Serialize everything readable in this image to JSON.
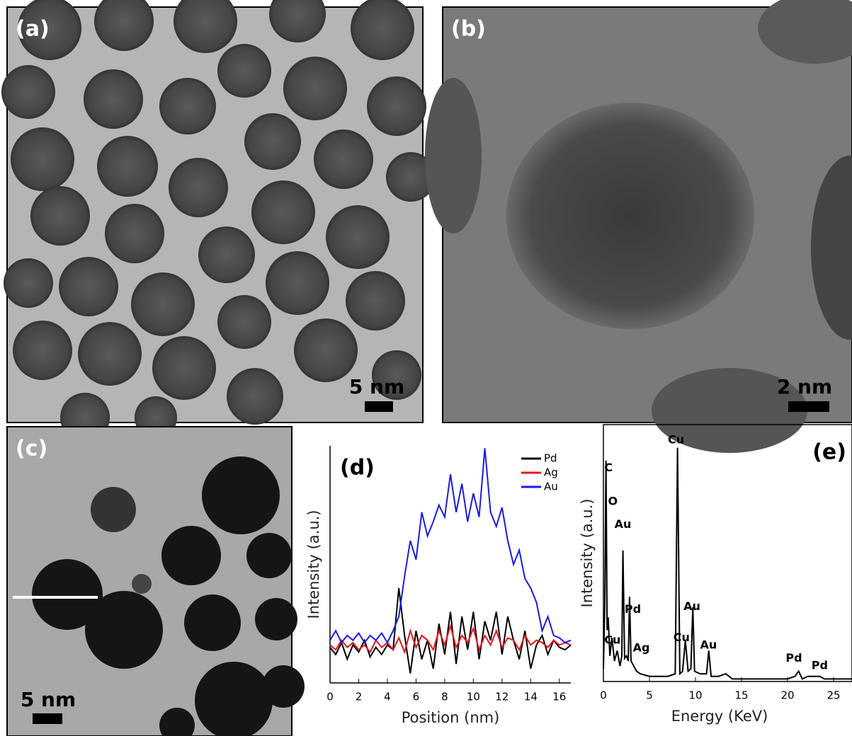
{
  "panels": [
    {
      "label": "(a)",
      "scale_bar": "5 nm"
    },
    {
      "label": "(b)",
      "scale_bar": "2 nm"
    },
    {
      "label": "(c)",
      "scale_bar": "5 nm"
    }
  ],
  "chart_data": [
    {
      "type": "line",
      "label": "(d)",
      "x_label": "Position (nm)",
      "y_label": "Intensity (a.u.)",
      "xlim": [
        0,
        16.8
      ],
      "xticks": [
        0,
        2,
        4,
        6,
        8,
        10,
        12,
        14,
        16
      ],
      "ylim": [
        0,
        100
      ],
      "legend": "top-right",
      "x": [
        0,
        0.4,
        0.8,
        1.2,
        1.6,
        2.0,
        2.4,
        2.8,
        3.2,
        3.6,
        4.0,
        4.4,
        4.8,
        5.2,
        5.6,
        6.0,
        6.4,
        6.8,
        7.2,
        7.6,
        8.0,
        8.4,
        8.8,
        9.2,
        9.6,
        10.0,
        10.4,
        10.8,
        11.2,
        11.6,
        12.0,
        12.4,
        12.8,
        13.2,
        13.6,
        14.0,
        14.4,
        14.8,
        15.2,
        15.6,
        16.0,
        16.4,
        16.8
      ],
      "series": [
        {
          "name": "Pd",
          "color": "#000000",
          "values": [
            15,
            12,
            17,
            10,
            16,
            13,
            18,
            11,
            15,
            12,
            16,
            14,
            40,
            20,
            4,
            22,
            10,
            18,
            6,
            25,
            12,
            30,
            8,
            28,
            14,
            30,
            10,
            26,
            18,
            30,
            12,
            28,
            18,
            10,
            22,
            6,
            16,
            20,
            12,
            18,
            15,
            14,
            16
          ]
        },
        {
          "name": "Ag",
          "color": "#e8141b",
          "values": [
            16,
            14,
            18,
            15,
            17,
            14,
            16,
            13,
            18,
            15,
            17,
            14,
            19,
            13,
            22,
            15,
            20,
            18,
            14,
            22,
            16,
            24,
            15,
            20,
            17,
            23,
            14,
            20,
            16,
            22,
            15,
            19,
            18,
            14,
            20,
            16,
            18,
            17,
            15,
            18,
            16,
            17,
            16
          ]
        },
        {
          "name": "Au",
          "color": "#1a1aeb",
          "values": [
            18,
            22,
            17,
            20,
            18,
            21,
            17,
            20,
            18,
            21,
            17,
            22,
            28,
            45,
            60,
            52,
            72,
            62,
            68,
            75,
            70,
            88,
            72,
            84,
            68,
            80,
            70,
            99,
            72,
            66,
            74,
            60,
            50,
            56,
            44,
            40,
            34,
            22,
            28,
            20,
            19,
            17,
            18
          ]
        }
      ]
    },
    {
      "type": "line",
      "label": "(e)",
      "x_label": "Energy (KeV)",
      "y_label": "Intensity (a.u.)",
      "xlim": [
        0,
        27
      ],
      "xticks": [
        0,
        5,
        10,
        15,
        20,
        25
      ],
      "ylim": [
        0,
        100
      ],
      "x": [
        0,
        0.15,
        0.28,
        0.4,
        0.52,
        0.7,
        0.93,
        1.2,
        1.5,
        1.8,
        2.0,
        2.12,
        2.3,
        2.5,
        2.7,
        2.84,
        3.0,
        3.3,
        3.6,
        4,
        5,
        6,
        7,
        7.8,
        8.05,
        8.3,
        8.6,
        8.9,
        9.2,
        9.5,
        9.71,
        9.9,
        10.5,
        11.2,
        11.44,
        11.7,
        12.5,
        13.3,
        14,
        16,
        18,
        20,
        20.8,
        21.2,
        21.6,
        22.2,
        23.5,
        24,
        25,
        26,
        27
      ],
      "series": [
        {
          "color": "#000000",
          "values": [
            5,
            30,
            86,
            20,
            25,
            10,
            17,
            8,
            12,
            6,
            10,
            51,
            9,
            10,
            8,
            33,
            8,
            6,
            4,
            3,
            2,
            2,
            2,
            3,
            91,
            3,
            4,
            16,
            4,
            5,
            29,
            4,
            3,
            3,
            12,
            2,
            2,
            3,
            1,
            1,
            1,
            1,
            2,
            4,
            1,
            2,
            2,
            1,
            1,
            1,
            1
          ]
        }
      ],
      "annotations": [
        {
          "text": "C",
          "x": 0.1,
          "y": 83
        },
        {
          "text": "Cu",
          "x": 7.0,
          "y": 94
        },
        {
          "text": "O",
          "x": 0.5,
          "y": 70
        },
        {
          "text": "Au",
          "x": 1.2,
          "y": 61
        },
        {
          "text": "Pd",
          "x": 2.3,
          "y": 28
        },
        {
          "text": "Au",
          "x": 8.7,
          "y": 29
        },
        {
          "text": "Cu",
          "x": 0.1,
          "y": 16
        },
        {
          "text": "Ag",
          "x": 3.2,
          "y": 13
        },
        {
          "text": "Cu",
          "x": 7.6,
          "y": 17
        },
        {
          "text": "Au",
          "x": 10.5,
          "y": 14
        },
        {
          "text": "Pd",
          "x": 19.8,
          "y": 9
        },
        {
          "text": "Pd",
          "x": 22.6,
          "y": 6
        }
      ]
    }
  ]
}
